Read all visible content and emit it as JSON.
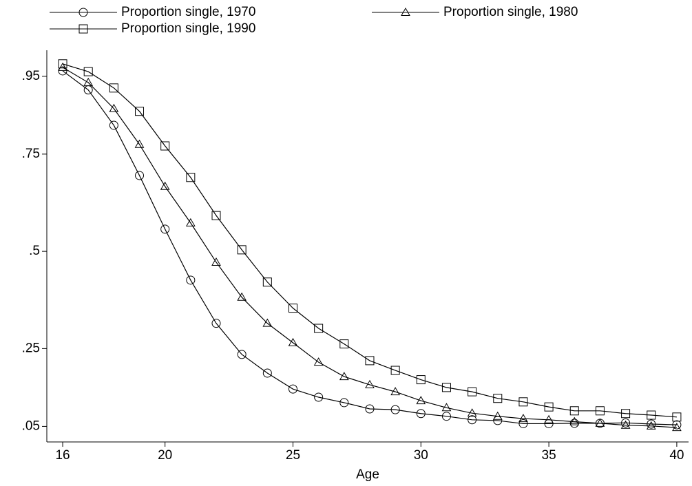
{
  "chart_data": {
    "type": "line",
    "x_label": "Age",
    "x": [
      16,
      17,
      18,
      19,
      20,
      21,
      22,
      23,
      24,
      25,
      26,
      27,
      28,
      29,
      30,
      31,
      32,
      33,
      34,
      35,
      36,
      37,
      38,
      39,
      40
    ],
    "series": [
      {
        "name": "Proportion single, 1970",
        "color": "#000000",
        "marker": "circle",
        "values": [
          0.964,
          0.915,
          0.824,
          0.695,
          0.557,
          0.426,
          0.315,
          0.235,
          0.187,
          0.146,
          0.125,
          0.111,
          0.095,
          0.093,
          0.083,
          0.076,
          0.067,
          0.065,
          0.057,
          0.057,
          0.058,
          0.058,
          0.059,
          0.056,
          0.054
        ]
      },
      {
        "name": "Proportion single, 1980",
        "color": "#000000",
        "marker": "triangle",
        "values": [
          0.973,
          0.934,
          0.867,
          0.775,
          0.667,
          0.573,
          0.472,
          0.382,
          0.315,
          0.265,
          0.215,
          0.178,
          0.157,
          0.139,
          0.116,
          0.098,
          0.084,
          0.076,
          0.07,
          0.067,
          0.062,
          0.058,
          0.053,
          0.051,
          0.047
        ]
      },
      {
        "name": "Proportion single, 1990",
        "color": "#000000",
        "marker": "square",
        "values": [
          0.982,
          0.962,
          0.92,
          0.86,
          0.771,
          0.69,
          0.592,
          0.504,
          0.421,
          0.354,
          0.302,
          0.262,
          0.219,
          0.194,
          0.17,
          0.15,
          0.139,
          0.122,
          0.113,
          0.1,
          0.09,
          0.09,
          0.083,
          0.079,
          0.074
        ]
      }
    ],
    "xlim": [
      15.38,
      40.46
    ],
    "ylim": [
      0.01,
      1.017
    ],
    "xticks": [
      16,
      20,
      25,
      30,
      35,
      40
    ],
    "yticks": [
      {
        "value": 0.05,
        "label": ".05"
      },
      {
        "value": 0.25,
        "label": ".25"
      },
      {
        "value": 0.5,
        "label": ".5"
      },
      {
        "value": 0.75,
        "label": ".75"
      },
      {
        "value": 0.95,
        "label": ".95"
      }
    ],
    "grid": false
  }
}
